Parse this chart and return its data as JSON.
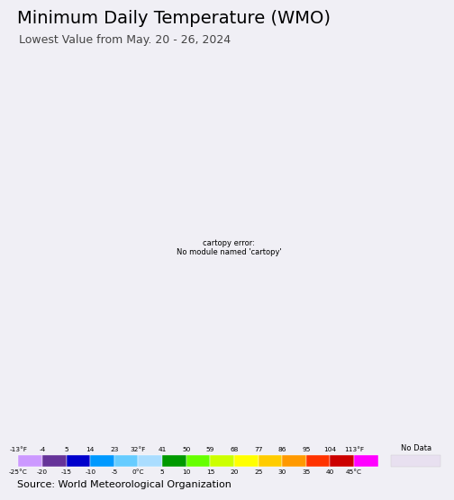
{
  "title": "Minimum Daily Temperature (WMO)",
  "subtitle": "Lowest Value from May. 20 - 26, 2024",
  "source": "Source: World Meteorological Organization",
  "colorbar_celsius": [
    -25,
    -20,
    -15,
    -10,
    -5,
    0,
    5,
    10,
    15,
    20,
    25,
    30,
    35,
    40,
    45
  ],
  "colorbar_fahrenheit": [
    -13,
    -4,
    5,
    14,
    23,
    32,
    41,
    50,
    59,
    68,
    77,
    86,
    95,
    104,
    113
  ],
  "colorbar_colors": [
    "#cc99ff",
    "#663399",
    "#0000cc",
    "#0099ff",
    "#66ccff",
    "#aaddff",
    "#009900",
    "#66ff00",
    "#ccff00",
    "#ffff00",
    "#ffcc00",
    "#ff9900",
    "#ff3300",
    "#cc0000",
    "#ff00ff",
    "#ffbbdd"
  ],
  "no_data_color": "#e8e0f0",
  "ocean_color": "#b3e0f0",
  "land_no_data": "#e8e8e8",
  "bg_color": "#f0eff5",
  "border_color_country": "#000000",
  "border_color_state": "#7090b0",
  "title_fontsize": 14,
  "subtitle_fontsize": 9,
  "source_fontsize": 8,
  "map_extent": [
    57,
    102,
    3,
    42
  ]
}
